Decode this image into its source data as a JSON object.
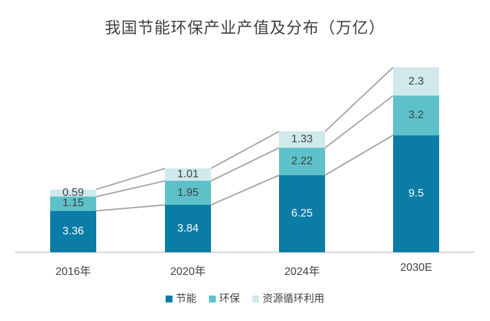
{
  "title": "我国节能环保产业产值及分布（万亿）",
  "chart_data": {
    "type": "bar",
    "stacked": true,
    "title": "我国节能环保产业产值及分布（万亿）",
    "categories": [
      "2016年",
      "2020年",
      "2024年",
      "2030E"
    ],
    "series": [
      {
        "name": "节能",
        "color": "#0a7ca6",
        "label_color": "#ffffff",
        "values": [
          3.36,
          3.84,
          6.25,
          9.5
        ]
      },
      {
        "name": "环保",
        "color": "#5ec1c9",
        "label_color": "#3f3f3f",
        "values": [
          1.15,
          1.95,
          2.22,
          3.2
        ]
      },
      {
        "name": "资源循环利用",
        "color": "#cfe9ed",
        "label_color": "#3f3f3f",
        "values": [
          0.59,
          1.01,
          1.33,
          2.3
        ]
      }
    ],
    "totals": [
      5.1,
      6.8,
      9.8,
      15.0
    ],
    "ylim": [
      0,
      15
    ],
    "xlabel": "",
    "ylabel": "",
    "grid": false,
    "legend_position": "bottom",
    "connector_line_color": "#a6a6a6",
    "axis_line_color": "#d9d9d9",
    "value_labels": "inside"
  }
}
